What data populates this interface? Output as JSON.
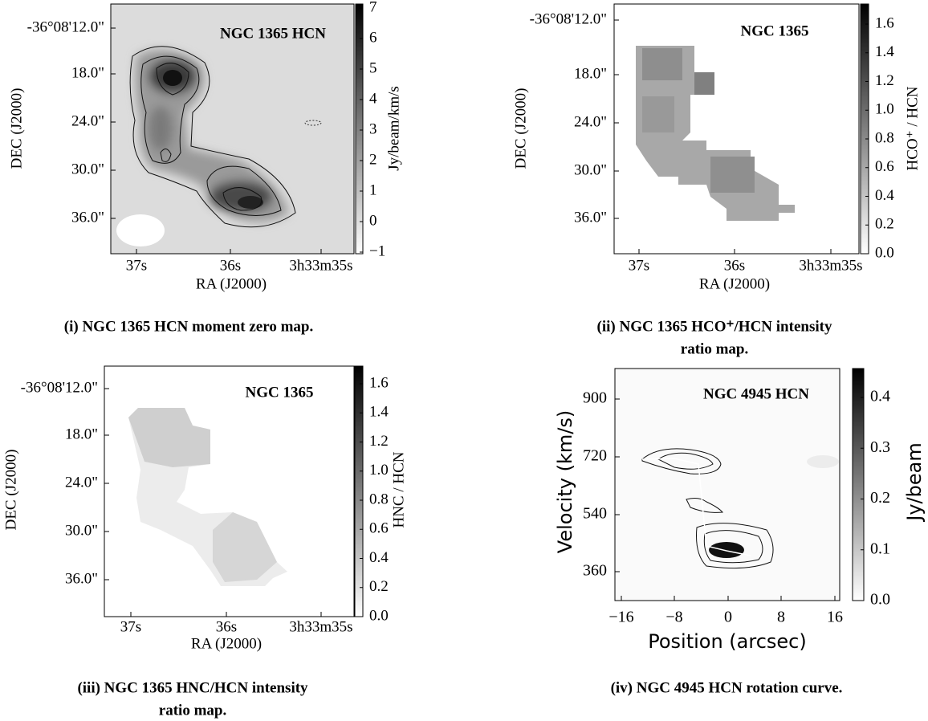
{
  "panels": [
    {
      "title": "NGC 1365 HCN",
      "caption": [
        "(i) NGC 1365 HCN moment zero map."
      ],
      "x_label": "RA (J2000)",
      "y_label": "DEC (J2000)",
      "colorbar_label": "Jy/beam/km/s",
      "x_ticks": [
        "37s",
        "36s",
        "3h33m35s"
      ],
      "y_ticks": [
        "-36°08'12.0\"",
        "18.0\"",
        "24.0\"",
        "30.0\"",
        "36.0\""
      ],
      "colorbar_ticks": [
        "7",
        "6",
        "5",
        "4",
        "3",
        "2",
        "1",
        "0",
        "−1"
      ]
    },
    {
      "title": "NGC 1365",
      "caption": [
        "(ii) NGC 1365 HCO⁺/HCN intensity",
        "ratio map."
      ],
      "x_label": "RA (J2000)",
      "y_label": "DEC (J2000)",
      "colorbar_label": "HCO⁺ / HCN",
      "x_ticks": [
        "37s",
        "36s",
        "3h33m35s"
      ],
      "y_ticks": [
        "-36°08'12.0\"",
        "18.0\"",
        "24.0\"",
        "30.0\"",
        "36.0\""
      ],
      "colorbar_ticks": [
        "1.6",
        "1.4",
        "1.2",
        "1.0",
        "0.8",
        "0.6",
        "0.4",
        "0.2",
        "0.0"
      ]
    },
    {
      "title": "NGC 1365",
      "caption": [
        "(iii) NGC 1365 HNC/HCN intensity",
        "ratio map."
      ],
      "x_label": "RA (J2000)",
      "y_label": "DEC (J2000)",
      "colorbar_label": "HNC / HCN",
      "x_ticks": [
        "37s",
        "36s",
        "3h33m35s"
      ],
      "y_ticks": [
        "-36°08'12.0\"",
        "18.0\"",
        "24.0\"",
        "30.0\"",
        "36.0\""
      ],
      "colorbar_ticks": [
        "1.6",
        "1.4",
        "1.2",
        "1.0",
        "0.8",
        "0.6",
        "0.4",
        "0.2",
        "0.0"
      ]
    },
    {
      "title": "NGC 4945 HCN",
      "caption": [
        "(iv) NGC 4945 HCN rotation curve."
      ],
      "x_label": "Position (arcsec)",
      "y_label": "Velocity (km/s)",
      "colorbar_label": "Jy/beam",
      "x_ticks": [
        "−16",
        "−8",
        "0",
        "8",
        "16"
      ],
      "y_ticks": [
        "900",
        "720",
        "540",
        "360"
      ],
      "colorbar_ticks": [
        "0.4",
        "0.3",
        "0.2",
        "0.1",
        "0.0"
      ]
    }
  ]
}
